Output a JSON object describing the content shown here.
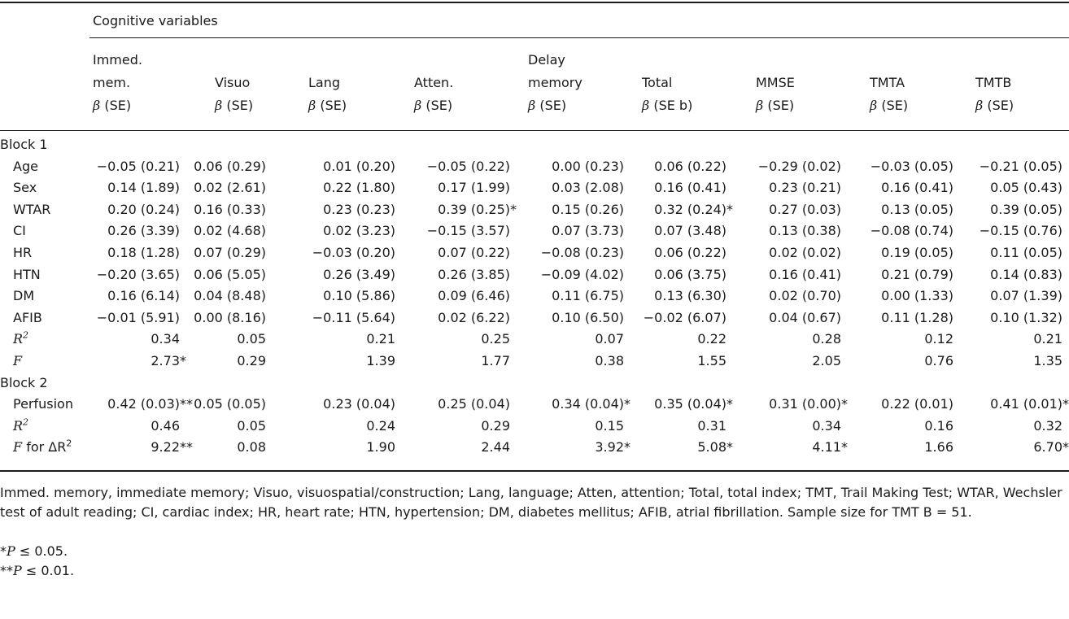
{
  "header": {
    "group_label": "Cognitive variables",
    "columns": [
      {
        "lines": [
          "Immed.",
          "mem."
        ],
        "stat": "(SE)"
      },
      {
        "lines": [
          "Visuo"
        ],
        "stat": "(SE)"
      },
      {
        "lines": [
          "Lang"
        ],
        "stat": "(SE)"
      },
      {
        "lines": [
          "Atten."
        ],
        "stat": "(SE)"
      },
      {
        "lines": [
          "Delay",
          "memory"
        ],
        "stat": "(SE)"
      },
      {
        "lines": [
          "Total"
        ],
        "stat": "(SE b)"
      },
      {
        "lines": [
          "MMSE"
        ],
        "stat": "(SE)"
      },
      {
        "lines": [
          "TMTA"
        ],
        "stat": "(SE)"
      },
      {
        "lines": [
          "TMTB"
        ],
        "stat": "(SE)"
      }
    ],
    "beta_symbol": "β"
  },
  "blocks": [
    {
      "label": "Block 1",
      "rows": [
        {
          "label": "Age",
          "values": [
            "−0.05 (0.21)",
            "0.06 (0.29)",
            "0.01 (0.20)",
            "−0.05 (0.22)",
            "0.00 (0.23)",
            "0.06 (0.22)",
            "−0.29 (0.02)",
            "−0.03 (0.05)",
            "−0.21 (0.05)"
          ]
        },
        {
          "label": "Sex",
          "values": [
            "0.14 (1.89)",
            "0.02 (2.61)",
            "0.22 (1.80)",
            "0.17 (1.99)",
            "0.03 (2.08)",
            "0.16 (0.41)",
            "0.23 (0.21)",
            "0.16 (0.41)",
            "0.05 (0.43)"
          ]
        },
        {
          "label": "WTAR",
          "values": [
            "0.20 (0.24)",
            "0.16 (0.33)",
            "0.23 (0.23)",
            "0.39 (0.25)*",
            "0.15 (0.26)",
            "0.32 (0.24)*",
            "0.27 (0.03)",
            "0.13 (0.05)",
            "0.39 (0.05)"
          ]
        },
        {
          "label": "CI",
          "values": [
            "0.26 (3.39)",
            "0.02 (4.68)",
            "0.02 (3.23)",
            "−0.15 (3.57)",
            "0.07 (3.73)",
            "0.07 (3.48)",
            "0.13 (0.38)",
            "−0.08 (0.74)",
            "−0.15 (0.76)"
          ]
        },
        {
          "label": "HR",
          "values": [
            "0.18 (1.28)",
            "0.07 (0.29)",
            "−0.03 (0.20)",
            "0.07 (0.22)",
            "−0.08 (0.23)",
            "0.06 (0.22)",
            "0.02 (0.02)",
            "0.19 (0.05)",
            "0.11 (0.05)"
          ]
        },
        {
          "label": "HTN",
          "values": [
            "−0.20 (3.65)",
            "0.06 (5.05)",
            "0.26 (3.49)",
            "0.26 (3.85)",
            "−0.09 (4.02)",
            "0.06 (3.75)",
            "0.16 (0.41)",
            "0.21 (0.79)",
            "0.14 (0.83)"
          ]
        },
        {
          "label": "DM",
          "values": [
            "0.16 (6.14)",
            "0.04 (8.48)",
            "0.10 (5.86)",
            "0.09 (6.46)",
            "0.11 (6.75)",
            "0.13 (6.30)",
            "0.02 (0.70)",
            "0.00 (1.33)",
            "0.07 (1.39)"
          ]
        },
        {
          "label": "AFIB",
          "values": [
            "−0.01 (5.91)",
            "0.00 (8.16)",
            "−0.11 (5.64)",
            "0.02 (6.22)",
            "0.10 (6.50)",
            "−0.02 (6.07)",
            "0.04 (0.67)",
            "0.11 (1.28)",
            "0.10 (1.32)"
          ]
        },
        {
          "label": "R",
          "sup": "2",
          "italic": true,
          "values": [
            "0.34",
            "0.05",
            "0.21",
            "0.25",
            "0.07",
            "0.22",
            "0.28",
            "0.12",
            "0.21"
          ]
        },
        {
          "label": "F",
          "italic": true,
          "values": [
            "2.73*",
            "0.29",
            "1.39",
            "1.77",
            "0.38",
            "1.55",
            "2.05",
            "0.76",
            "1.35"
          ]
        }
      ]
    },
    {
      "label": "Block 2",
      "rows": [
        {
          "label": "Perfusion",
          "values": [
            "0.42 (0.03)**",
            "0.05 (0.05)",
            "0.23 (0.04)",
            "0.25 (0.04)",
            "0.34 (0.04)*",
            "0.35 (0.04)*",
            "0.31 (0.00)*",
            "0.22 (0.01)",
            "0.41 (0.01)*"
          ]
        },
        {
          "label": "R",
          "sup": "2",
          "italic": true,
          "values": [
            "0.46",
            "0.05",
            "0.24",
            "0.29",
            "0.15",
            "0.31",
            "0.34",
            "0.16",
            "0.32"
          ]
        },
        {
          "label": "F",
          "label_suffix": " for ΔR",
          "sup": "2",
          "italic": true,
          "values": [
            "9.22**",
            "0.08",
            "1.90",
            "2.44",
            "3.92*",
            "5.08*",
            "4.11*",
            "1.66",
            "6.70*"
          ]
        }
      ]
    }
  ],
  "footnotes": {
    "abbreviations": "Immed. memory, immediate memory; Visuo, visuospatial/construction; Lang, language; Atten, attention; Total, total index; TMT, Trail Making Test; WTAR, Wechsler test of adult reading; CI, cardiac index; HR, heart rate; HTN, hypertension; DM, diabetes mellitus; AFIB, atrial fibrillation. Sample size for TMT B = 51.",
    "sig1_prefix": "*",
    "sig1_var": "P",
    "sig1_text": " ≤ 0.05.",
    "sig2_prefix": "**",
    "sig2_var": "P",
    "sig2_text": " ≤ 0.01."
  }
}
